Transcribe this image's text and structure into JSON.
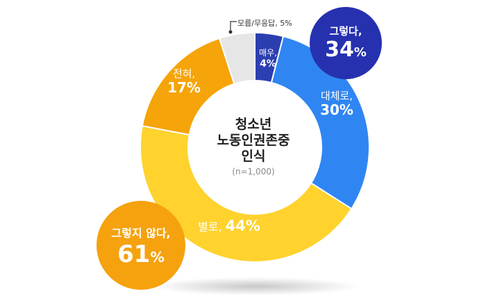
{
  "chart_data": {
    "type": "pie",
    "style": "donut",
    "title_lines": [
      "청소년",
      "노동인권존중",
      "인식"
    ],
    "sample": "(n=1,000)",
    "slices": [
      {
        "name": "매우,",
        "value": 4,
        "display": "4%",
        "color": "#2c3fb0"
      },
      {
        "name": "대체로,",
        "value": 30,
        "display": "30%",
        "color": "#2f86f2"
      },
      {
        "name": "별로,",
        "value": 44,
        "display": "44%",
        "color": "#ffd22e"
      },
      {
        "name": "전혀,",
        "value": 17,
        "display": "17%",
        "color": "#f5a409"
      },
      {
        "name": "모름/무응답,",
        "value": 5,
        "display": "5%",
        "color": "#e6e6e6"
      }
    ],
    "summary": [
      {
        "name": "그렇다,",
        "value": 34,
        "display": "34",
        "unit": "%",
        "color": "#2631b0"
      },
      {
        "name": "그렇지 않다,",
        "value": 61,
        "display": "61",
        "unit": "%",
        "color": "#f5a20e"
      }
    ],
    "note_text": "모름/무응답, 5%"
  }
}
